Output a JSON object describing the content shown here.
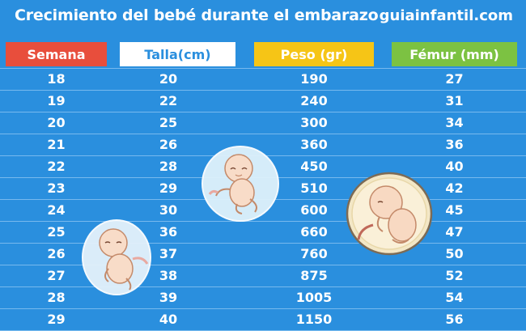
{
  "header": {
    "title": "Crecimiento del bebé durante el embarazo",
    "brand": "guiainfantil.com"
  },
  "table": {
    "columns": [
      "Semana",
      "Talla(cm)",
      "Peso (gr)",
      "Fémur (mm)"
    ],
    "column_colors": [
      "#e84e3c",
      "#ffffff",
      "#f6c516",
      "#7cc242"
    ],
    "rows": [
      [
        "18",
        "20",
        "190",
        "27"
      ],
      [
        "19",
        "22",
        "240",
        "31"
      ],
      [
        "20",
        "25",
        "300",
        "34"
      ],
      [
        "21",
        "26",
        "360",
        "36"
      ],
      [
        "22",
        "28",
        "450",
        "40"
      ],
      [
        "23",
        "29",
        "510",
        "42"
      ],
      [
        "24",
        "30",
        "600",
        "45"
      ],
      [
        "25",
        "36",
        "660",
        "47"
      ],
      [
        "26",
        "37",
        "760",
        "50"
      ],
      [
        "27",
        "38",
        "875",
        "52"
      ],
      [
        "28",
        "39",
        "1005",
        "54"
      ],
      [
        "29",
        "40",
        "1150",
        "56"
      ]
    ]
  },
  "illustrations": [
    "fetus-in-bubble-icon",
    "fetus-in-bubble-icon",
    "fetus-in-bubble-icon"
  ],
  "colors": {
    "background": "#2a8fde",
    "row_line": "#77b9ee"
  }
}
